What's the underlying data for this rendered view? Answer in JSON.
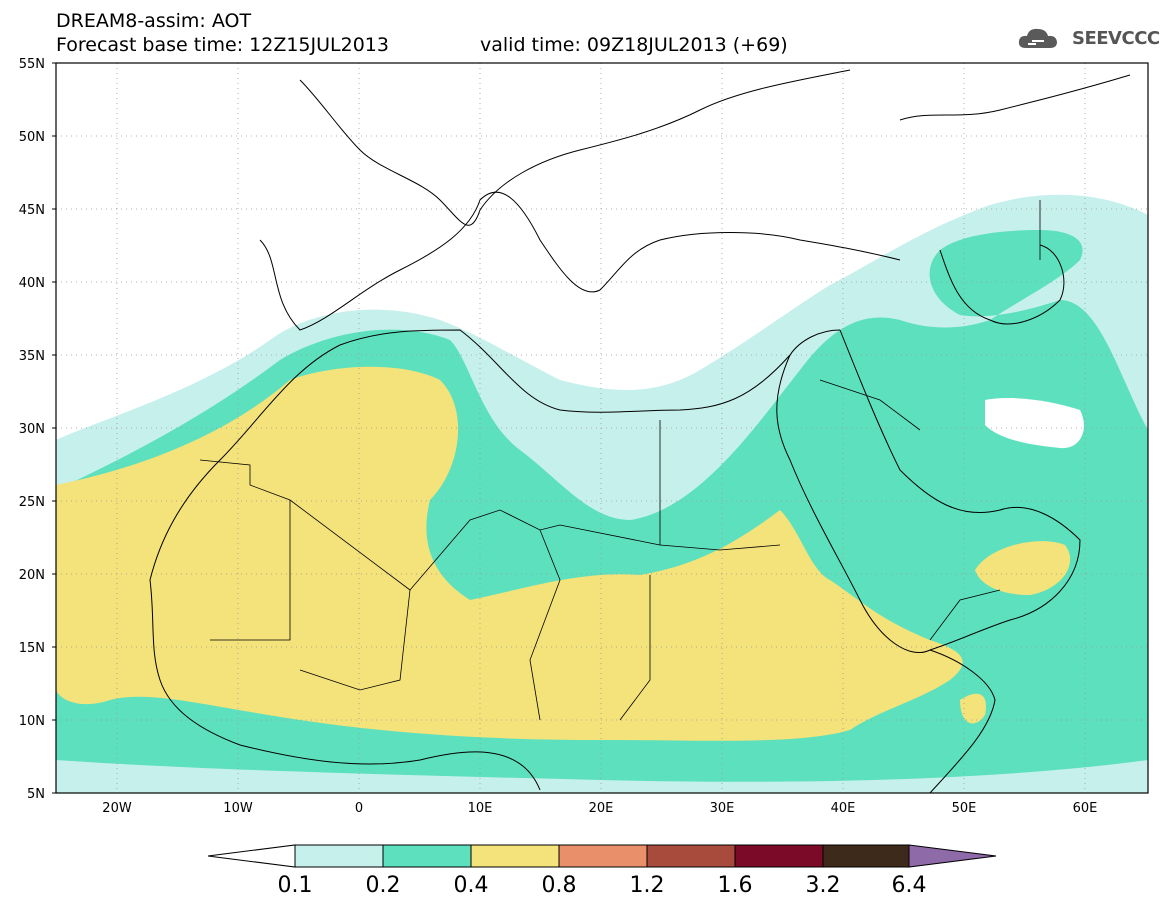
{
  "header": {
    "model_title": "DREAM8-assim: AOT",
    "base_time": "Forecast base time: 12Z15JUL2013",
    "valid_time": "valid time: 09Z18JUL2013 (+69)",
    "logo_text": "SEEVCCC"
  },
  "map": {
    "lat_labels": [
      "55N",
      "50N",
      "45N",
      "40N",
      "35N",
      "30N",
      "25N",
      "20N",
      "15N",
      "10N",
      "5N"
    ],
    "lon_labels": [
      "20W",
      "10W",
      "0",
      "10E",
      "20E",
      "30E",
      "40E",
      "50E",
      "60E"
    ],
    "lon_range": [
      -25,
      65
    ],
    "lat_range": [
      5,
      55
    ],
    "variable": "AOT"
  },
  "colorbar": {
    "labels": [
      "0.1",
      "0.2",
      "0.4",
      "0.8",
      "1.2",
      "1.6",
      "3.2",
      "6.4"
    ],
    "colors": [
      "#ffffff",
      "#c6f0ec",
      "#5de0be",
      "#f4e27a",
      "#e9906a",
      "#a84a3c",
      "#7a0a28",
      "#3e2a1a",
      "#8e6aa8"
    ]
  },
  "colors": {
    "level_0_1": "#c6f0ec",
    "level_0_2": "#5de0be",
    "level_0_4": "#f4e27a"
  }
}
